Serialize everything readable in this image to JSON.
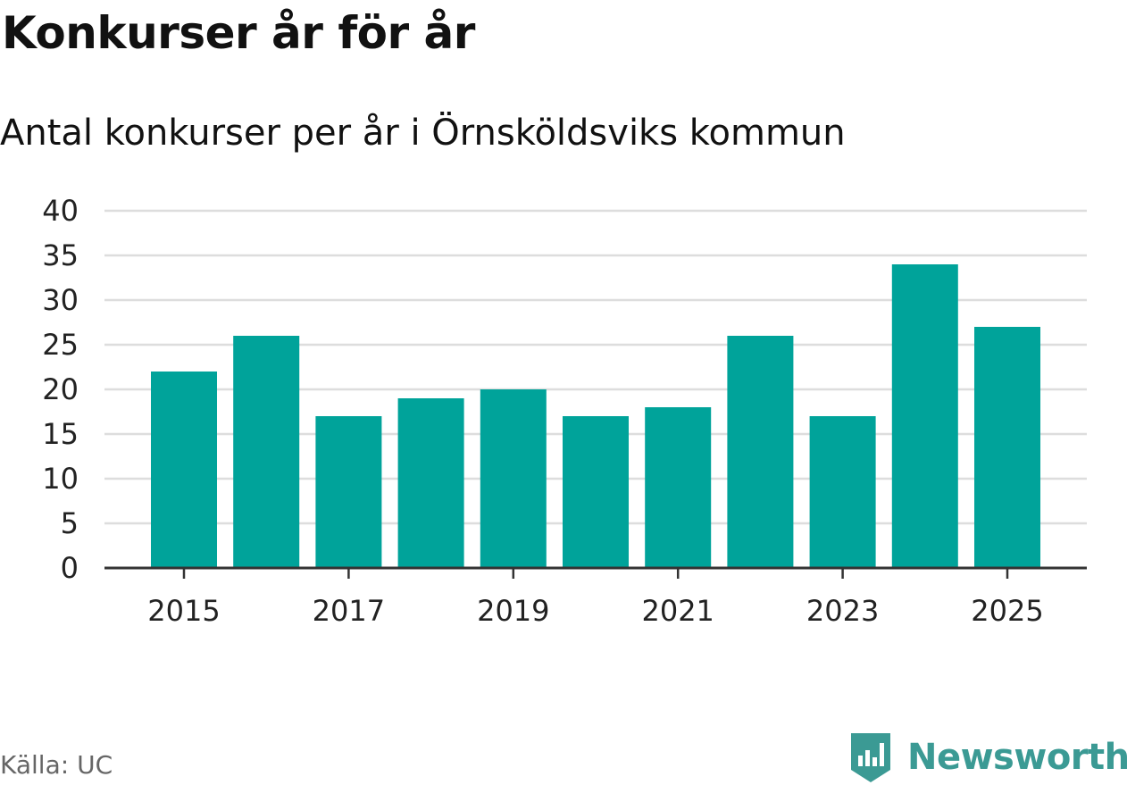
{
  "header": {
    "title": "Konkurser år för år",
    "subtitle": "Antal konkurser per år i Örnsköldsviks kommun"
  },
  "footer": {
    "source": "Källa: UC",
    "brand": "Newsworthy",
    "brand_icon": "newsworthy-logo-icon"
  },
  "colors": {
    "bar": "#00a39a",
    "grid": "#dddddd",
    "axis": "#333333",
    "brand": "#3b9a94"
  },
  "chart_data": {
    "type": "bar",
    "title": "Konkurser år för år",
    "subtitle": "Antal konkurser per år i Örnsköldsviks kommun",
    "categories": [
      "2015",
      "2016",
      "2017",
      "2018",
      "2019",
      "2020",
      "2021",
      "2022",
      "2023",
      "2024",
      "2025"
    ],
    "values": [
      22,
      26,
      17,
      19,
      20,
      17,
      18,
      26,
      17,
      34,
      27
    ],
    "x_tick_labels": [
      "2015",
      "2017",
      "2019",
      "2021",
      "2023",
      "2025"
    ],
    "y_ticks": [
      0,
      5,
      10,
      15,
      20,
      25,
      30,
      35,
      40
    ],
    "ylim": [
      0,
      40
    ],
    "xlabel": "",
    "ylabel": "",
    "grid": true,
    "legend": "none"
  }
}
